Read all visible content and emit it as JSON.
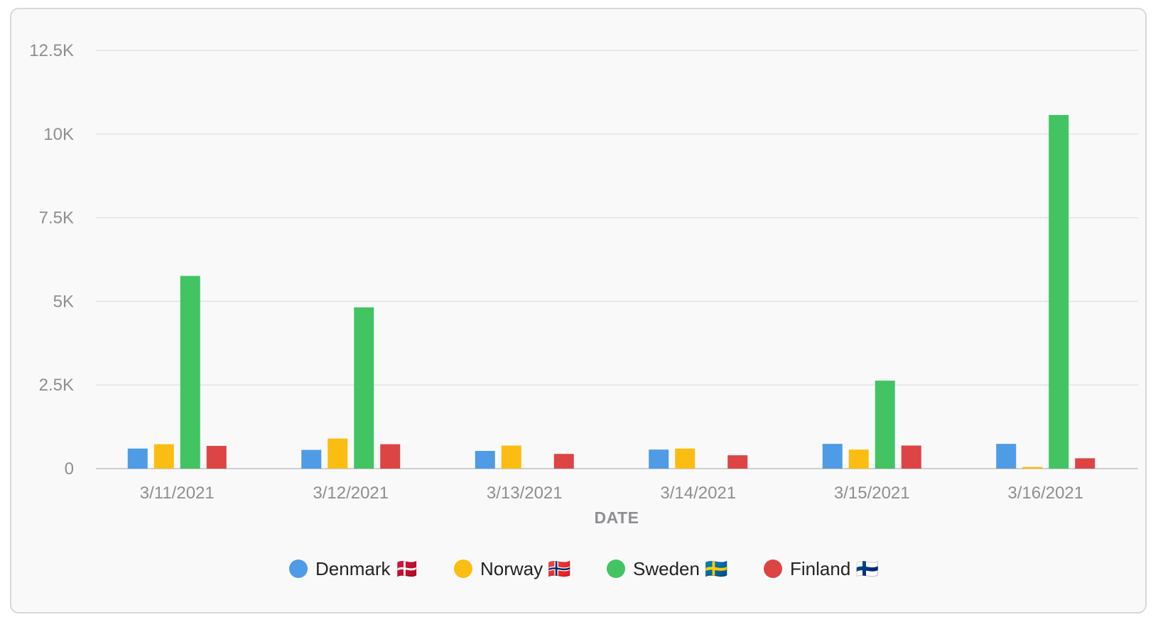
{
  "chart_data": {
    "type": "bar",
    "xlabel": "DATE",
    "ylabel": "",
    "ylim": [
      0,
      12500
    ],
    "yticks": [
      0,
      2500,
      5000,
      7500,
      10000,
      12500
    ],
    "ytick_labels": [
      "0",
      "2.5K",
      "5K",
      "7.5K",
      "10K",
      "12.5K"
    ],
    "grid": true,
    "legend_position": "bottom",
    "categories": [
      "3/11/2021",
      "3/12/2021",
      "3/13/2021",
      "3/14/2021",
      "3/15/2021",
      "3/16/2021"
    ],
    "series": [
      {
        "name": "Denmark 🇩🇰",
        "color": "#4f9be6",
        "values": [
          600,
          560,
          530,
          570,
          740,
          740
        ]
      },
      {
        "name": "Norway 🇳🇴",
        "color": "#fcbd12",
        "values": [
          730,
          900,
          690,
          600,
          570,
          50
        ]
      },
      {
        "name": "Sweden 🇸🇪",
        "color": "#42c463",
        "values": [
          5760,
          4820,
          0,
          0,
          2630,
          10570
        ]
      },
      {
        "name": "Finland 🇫🇮",
        "color": "#dd4444",
        "values": [
          680,
          730,
          440,
          400,
          690,
          310
        ]
      }
    ]
  }
}
